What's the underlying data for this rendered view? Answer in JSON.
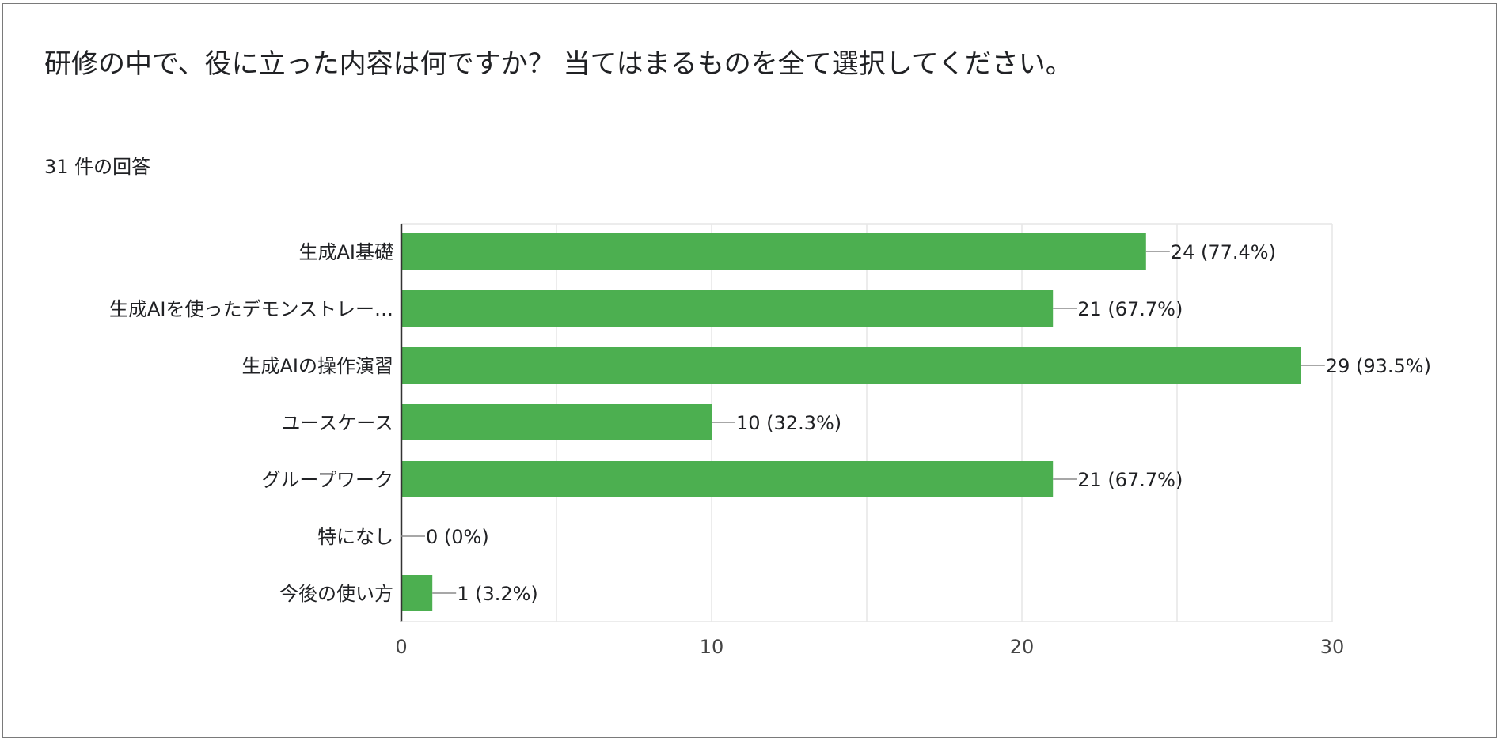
{
  "header": {
    "title": "研修の中で、役に立った内容は何ですか？ 当てはまるものを全て選択してください。",
    "response_count": "31 件の回答"
  },
  "chart_data": {
    "type": "bar",
    "orientation": "horizontal",
    "title": "研修の中で、役に立った内容は何ですか？ 当てはまるものを全て選択してください。",
    "categories": [
      "生成AI基礎",
      "生成AIを使ったデモンストレー…",
      "生成AIの操作演習",
      "ユースケース",
      "グループワーク",
      "特になし",
      "今後の使い方"
    ],
    "values": [
      24,
      21,
      29,
      10,
      21,
      0,
      1
    ],
    "value_labels": [
      "24 (77.4%)",
      "21 (67.7%)",
      "29 (93.5%)",
      "10 (32.3%)",
      "21 (67.7%)",
      "0 (0%)",
      "1 (3.2%)"
    ],
    "xlim": [
      0,
      30
    ],
    "ticks": [
      0,
      10,
      20,
      30
    ],
    "tick_labels": [
      "0",
      "10",
      "20",
      "30"
    ],
    "grid": true,
    "bar_color": "#4caf50",
    "axis_color": "#333333",
    "grid_color": "#e6e6e6"
  }
}
